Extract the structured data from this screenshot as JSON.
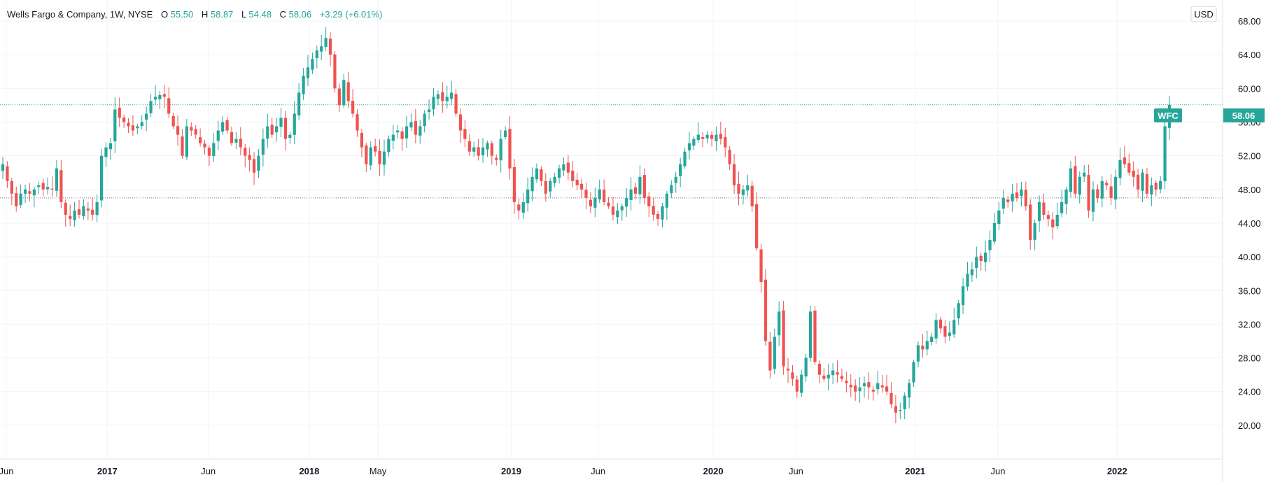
{
  "header": {
    "symbol_title": "Wells Fargo & Company, 1W, NYSE",
    "o_label": "O",
    "o_value": "55.50",
    "h_label": "H",
    "h_value": "58.87",
    "l_label": "L",
    "l_value": "54.48",
    "c_label": "C",
    "c_value": "58.06",
    "change": "+3.29 (+6.01%)"
  },
  "currency": "USD",
  "price_badge": {
    "ticker": "WFC",
    "value": "58.06"
  },
  "colors": {
    "up": "#26a69a",
    "down": "#ef5350",
    "grid": "#f0f3fa",
    "axis_text": "#131722",
    "badge": "#26a69a",
    "dotted_line": "#26a69a",
    "ref_line": "#787b86"
  },
  "chart_data": {
    "type": "candlestick",
    "interval": "1W",
    "x_ticks": [
      {
        "label": "Jun",
        "t": 0.0,
        "bold": false
      },
      {
        "label": "2017",
        "t": 0.5,
        "bold": true
      },
      {
        "label": "Jun",
        "t": 1.0,
        "bold": false
      },
      {
        "label": "2018",
        "t": 1.5,
        "bold": true
      },
      {
        "label": "May",
        "t": 1.84,
        "bold": false
      },
      {
        "label": "2019",
        "t": 2.5,
        "bold": true
      },
      {
        "label": "Jun",
        "t": 2.93,
        "bold": false
      },
      {
        "label": "2020",
        "t": 3.5,
        "bold": true
      },
      {
        "label": "Jun",
        "t": 3.91,
        "bold": false
      },
      {
        "label": "2021",
        "t": 4.5,
        "bold": true
      },
      {
        "label": "Jun",
        "t": 4.91,
        "bold": false
      },
      {
        "label": "2022",
        "t": 5.5,
        "bold": true
      }
    ],
    "y_ticks": [
      "68.00",
      "64.00",
      "60.00",
      "56.00",
      "52.00",
      "48.00",
      "44.00",
      "40.00",
      "36.00",
      "32.00",
      "28.00",
      "24.00",
      "20.00"
    ],
    "ylim": [
      16.0,
      70.5
    ],
    "reference_line": 47.0,
    "last_close": 58.06,
    "closes": [
      51.0,
      49.0,
      47.5,
      46.0,
      47.5,
      48.0,
      47.5,
      48.0,
      48.5,
      48.0,
      48.3,
      48.0,
      50.5,
      46.5,
      45.0,
      44.5,
      45.5,
      45.0,
      46.0,
      45.5,
      45.0,
      46.5,
      52.0,
      53.0,
      53.5,
      57.5,
      56.5,
      56.0,
      55.5,
      55.0,
      55.5,
      56.0,
      57.0,
      58.5,
      59.0,
      59.2,
      59.0,
      57.0,
      55.5,
      54.5,
      52.0,
      55.5,
      55.0,
      54.5,
      53.5,
      53.0,
      52.0,
      53.5,
      55.0,
      56.0,
      55.0,
      53.5,
      54.0,
      53.0,
      52.0,
      51.5,
      50.0,
      52.0,
      54.0,
      55.5,
      54.5,
      55.5,
      56.5,
      54.0,
      54.5,
      57.0,
      59.5,
      61.5,
      62.5,
      63.5,
      64.5,
      65.0,
      66.0,
      64.0,
      60.0,
      58.0,
      61.0,
      58.5,
      57.0,
      55.0,
      53.0,
      51.0,
      53.0,
      52.5,
      51.0,
      52.5,
      54.0,
      54.5,
      55.0,
      54.0,
      55.5,
      56.0,
      54.5,
      55.5,
      57.0,
      57.5,
      59.0,
      59.3,
      58.5,
      59.0,
      59.5,
      57.0,
      55.0,
      54.0,
      52.5,
      53.0,
      52.0,
      53.0,
      53.5,
      52.0,
      51.5,
      54.0,
      55.0,
      50.5,
      46.5,
      45.5,
      46.5,
      48.0,
      49.5,
      50.5,
      49.0,
      47.5,
      49.0,
      49.5,
      50.5,
      51.0,
      50.0,
      49.0,
      48.5,
      48.0,
      47.0,
      46.0,
      47.0,
      48.0,
      46.5,
      46.0,
      45.0,
      45.5,
      46.0,
      47.0,
      48.0,
      47.5,
      49.5,
      47.0,
      46.0,
      45.0,
      44.5,
      46.0,
      47.5,
      48.5,
      49.5,
      51.0,
      52.5,
      53.5,
      54.0,
      54.5,
      54.0,
      54.5,
      54.0,
      54.5,
      54.0,
      53.0,
      51.0,
      48.5,
      47.5,
      48.0,
      48.5,
      46.0,
      41.0,
      37.0,
      30.0,
      26.5,
      30.5,
      33.5,
      27.0,
      26.5,
      25.5,
      24.0,
      26.0,
      28.0,
      33.5,
      27.5,
      26.0,
      25.5,
      26.0,
      26.5,
      26.0,
      25.5,
      25.0,
      24.5,
      24.0,
      24.5,
      25.0,
      24.5,
      24.0,
      25.0,
      24.5,
      24.0,
      22.5,
      21.5,
      21.8,
      23.5,
      25.0,
      27.5,
      29.5,
      29.0,
      30.0,
      30.5,
      32.5,
      31.5,
      30.5,
      31.0,
      32.5,
      34.5,
      36.5,
      38.0,
      38.5,
      40.0,
      39.5,
      40.5,
      42.0,
      44.0,
      45.5,
      47.0,
      46.5,
      47.5,
      47.0,
      48.0,
      46.0,
      42.0,
      44.0,
      46.5,
      45.0,
      44.5,
      43.5,
      45.0,
      46.5,
      48.0,
      50.5,
      47.5,
      49.5,
      50.0,
      45.5,
      48.0,
      47.0,
      49.0,
      48.5,
      47.0,
      49.5,
      51.5,
      51.0,
      50.0,
      49.5,
      48.0,
      50.0,
      47.5,
      48.5,
      48.0,
      49.0,
      55.5,
      58.06
    ]
  }
}
